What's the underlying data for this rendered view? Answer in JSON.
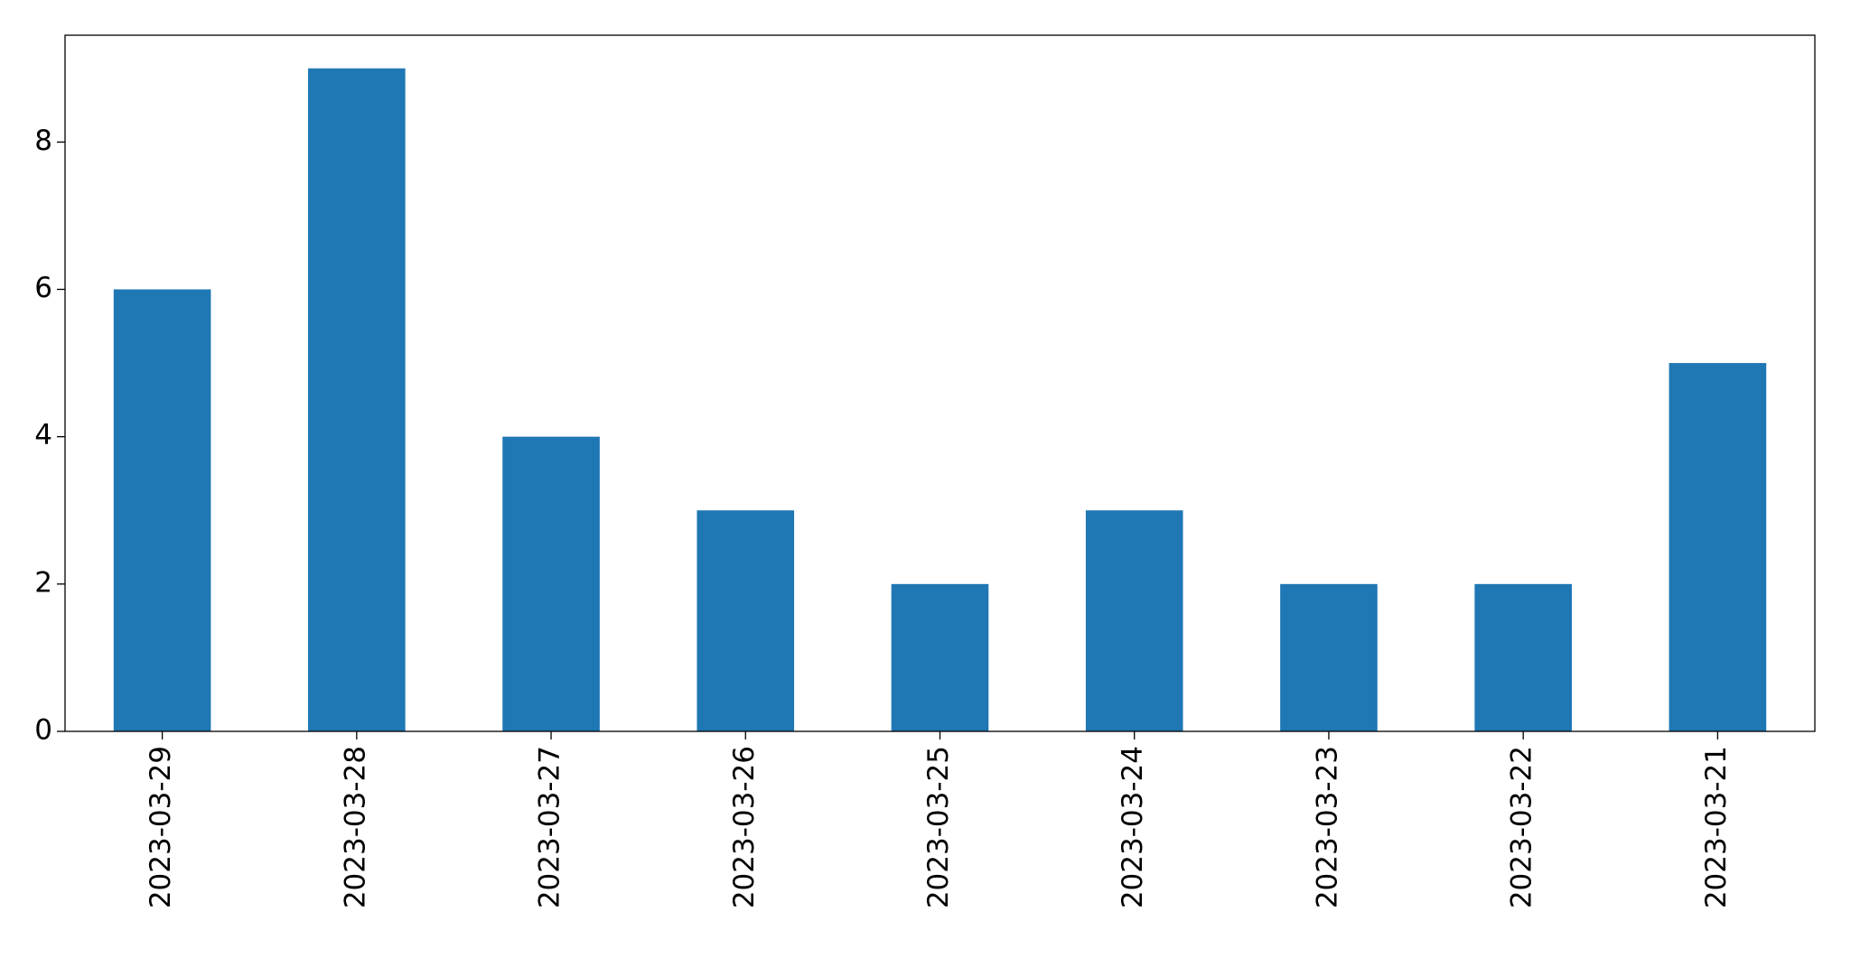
{
  "chart_data": {
    "type": "bar",
    "categories": [
      "2023-03-29",
      "2023-03-28",
      "2023-03-27",
      "2023-03-26",
      "2023-03-25",
      "2023-03-24",
      "2023-03-23",
      "2023-03-22",
      "2023-03-21"
    ],
    "values": [
      6,
      9,
      4,
      3,
      2,
      3,
      2,
      2,
      5
    ],
    "color": "#1f77b4",
    "ylim": [
      0,
      9.45
    ],
    "yticks": [
      0,
      2,
      4,
      6,
      8
    ],
    "grid": false
  }
}
